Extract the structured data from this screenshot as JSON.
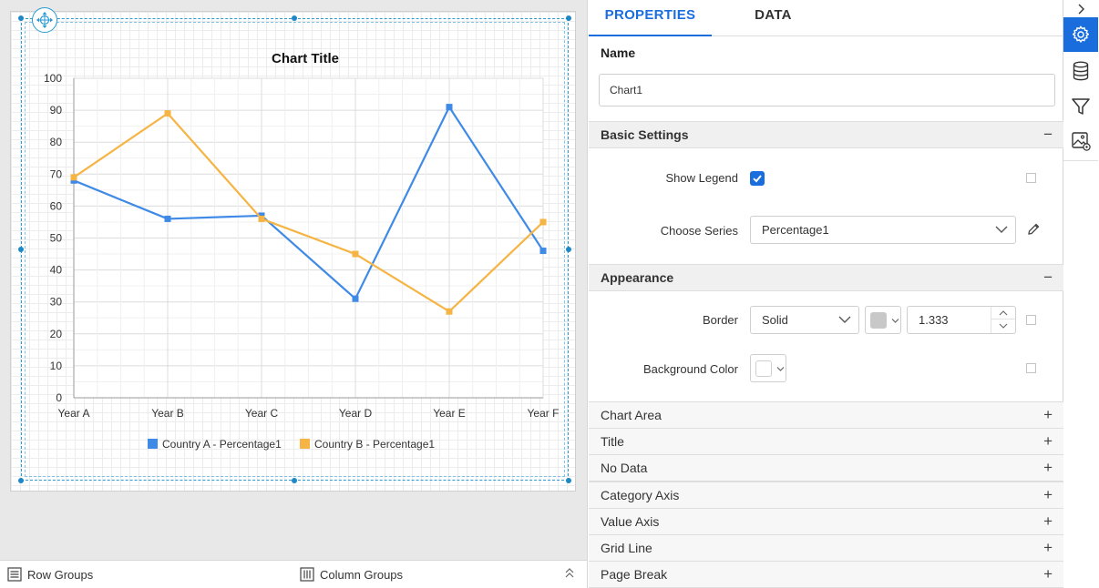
{
  "chart_data": {
    "type": "line",
    "title": "Chart Title",
    "xlabel": "",
    "ylabel": "",
    "categories": [
      "Year A",
      "Year B",
      "Year C",
      "Year D",
      "Year E",
      "Year F"
    ],
    "ylim": [
      0,
      100
    ],
    "yticks": [
      0,
      10,
      20,
      30,
      40,
      50,
      60,
      70,
      80,
      90,
      100
    ],
    "grid": true,
    "legend_position": "bottom",
    "series": [
      {
        "name": "Country A - Percentage1",
        "color": "#3f8ae6",
        "values": [
          68,
          56,
          57,
          31,
          91,
          46
        ]
      },
      {
        "name": "Country B - Percentage1",
        "color": "#f5b444",
        "values": [
          69,
          89,
          56,
          45,
          27,
          55
        ]
      }
    ]
  },
  "bottom_bar": {
    "row_groups": "Row Groups",
    "column_groups": "Column Groups"
  },
  "tabs": {
    "properties": "PROPERTIES",
    "data": "DATA"
  },
  "properties": {
    "name_label": "Name",
    "name_value": "Chart1",
    "basic_settings": {
      "title": "Basic Settings",
      "toggle": "−",
      "show_legend_label": "Show Legend",
      "show_legend_checked": true,
      "choose_series_label": "Choose Series",
      "choose_series_value": "Percentage1"
    },
    "appearance": {
      "title": "Appearance",
      "toggle": "−",
      "border_label": "Border",
      "border_style": "Solid",
      "border_color": "#c8c8c8",
      "border_width": "1.333",
      "background_color_label": "Background Color",
      "background_color": "#ffffff"
    },
    "collapsed_sections": [
      {
        "title": "Chart Area",
        "toggle": "+"
      },
      {
        "title": "Title",
        "toggle": "+"
      },
      {
        "title": "No Data",
        "toggle": "+"
      },
      {
        "title": "Category Axis",
        "toggle": "+"
      },
      {
        "title": "Value Axis",
        "toggle": "+"
      },
      {
        "title": "Grid Line",
        "toggle": "+"
      },
      {
        "title": "Page Break",
        "toggle": "+"
      }
    ]
  },
  "toolbar": {
    "icons": [
      "chevron-right-icon",
      "gear-icon",
      "database-icon",
      "filter-icon",
      "image-settings-icon"
    ],
    "accent": "#1a6ddd"
  }
}
